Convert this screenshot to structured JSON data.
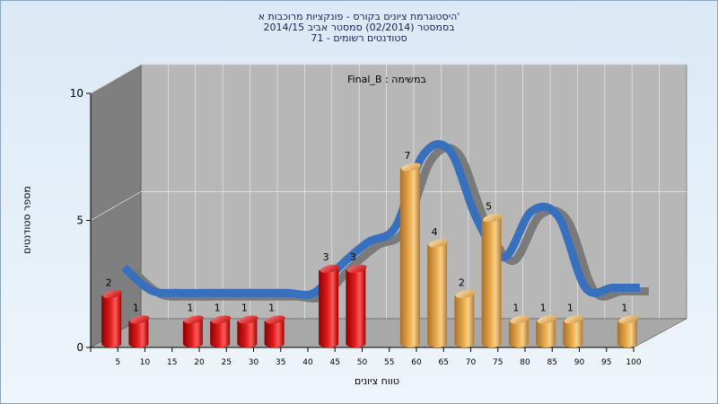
{
  "chart_data": {
    "type": "bar",
    "title_lines": [
      "היסטוגרמת ציונים בקורס - פונקציות מרוכבות א'",
      "בסמסטר  (02/2014)  סמסטר אביב 2014/15",
      "סטודנטים רשומים - 71"
    ],
    "subtitle": "במשימה : Final_B",
    "xlabel": "טווח ציונים",
    "ylabel": "מספר סטודנטים",
    "ylim": [
      0,
      10
    ],
    "yticks": [
      "0",
      "5",
      "10"
    ],
    "categories": [
      "5",
      "10",
      "15",
      "20",
      "25",
      "30",
      "35",
      "40",
      "45",
      "50",
      "55",
      "60",
      "65",
      "70",
      "75",
      "80",
      "85",
      "90",
      "95",
      "100"
    ],
    "values": [
      2,
      1,
      0,
      1,
      1,
      1,
      1,
      0,
      3,
      3,
      0,
      7,
      4,
      2,
      5,
      1,
      1,
      1,
      0,
      1
    ],
    "value_labels": [
      "2",
      "1",
      "",
      "1",
      "1",
      "1",
      "1",
      "",
      "3",
      "3",
      "",
      "7",
      "4",
      "2",
      "5",
      "1",
      "1",
      "1",
      "",
      "1"
    ],
    "bar_groups": [
      "red",
      "red",
      "red",
      "red",
      "red",
      "red",
      "red",
      "red",
      "red",
      "red",
      "orange",
      "orange",
      "orange",
      "orange",
      "orange",
      "orange",
      "orange",
      "orange",
      "orange",
      "orange"
    ],
    "trend": [
      2.3,
      1.4,
      1.3,
      1.3,
      1.3,
      1.3,
      1.3,
      1.3,
      2.4,
      3.3,
      3.9,
      6.7,
      6.9,
      4.2,
      2.7,
      4.5,
      4.3,
      1.5,
      1.5,
      1.5
    ],
    "grid": true,
    "colors": {
      "red": "#dd1c1c",
      "orange": "#e8a94a",
      "trend": "#3870c0",
      "trend_shadow": "#7a7a7a",
      "floor": "#a8a8a8",
      "back_wall": "#b7b7b7",
      "side_wall": "#7f7f7f"
    }
  }
}
